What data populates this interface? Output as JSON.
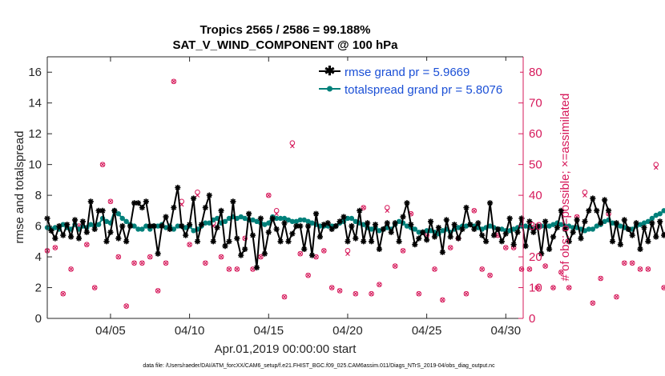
{
  "chart_data": {
    "type": "line",
    "title_line1": "Tropics 2565 / 2586 = 99.188%",
    "title_line2": "SAT_V_WIND_COMPONENT @ 100 hPa",
    "xlabel": "Apr.01,2019 00:00:00 start",
    "ylabel_left": "rmse and totalspread",
    "ylabel_right": "# of obs: o=possible; ×=assimilated",
    "xlim": [
      1,
      31.1
    ],
    "ylim_left": [
      0,
      17
    ],
    "ylim_right": [
      0,
      85
    ],
    "x_ticks": [
      5,
      10,
      15,
      20,
      25,
      30
    ],
    "x_tick_labels": [
      "04/05",
      "04/10",
      "04/15",
      "04/20",
      "04/25",
      "04/30"
    ],
    "y_ticks_left": [
      0,
      2,
      4,
      6,
      8,
      10,
      12,
      14,
      16
    ],
    "y_tick_labels_left": [
      "0",
      "2",
      "4",
      "6",
      "8",
      "10",
      "12",
      "14",
      "16"
    ],
    "y_ticks_right": [
      0,
      10,
      20,
      30,
      40,
      50,
      60,
      70,
      80
    ],
    "y_tick_labels_right": [
      "0",
      "10",
      "20",
      "30",
      "40",
      "50",
      "60",
      "70",
      "80"
    ],
    "series": [
      {
        "name": "rmse grand pr = 5.9669",
        "color": "#000000",
        "marker": "star",
        "x_start": 1.0,
        "x_step": 0.25,
        "values": [
          6.5,
          5.7,
          5.2,
          6.0,
          5.4,
          6.1,
          5.3,
          6.4,
          5.2,
          6.3,
          5.6,
          7.6,
          5.8,
          7.0,
          7.0,
          5.0,
          5.6,
          7.0,
          5.2,
          6.0,
          5.0,
          6.0,
          7.5,
          7.5,
          7.2,
          7.6,
          6.0,
          6.0,
          4.2,
          6.0,
          6.6,
          5.8,
          7.2,
          8.5,
          6.0,
          5.4,
          6.1,
          7.8,
          5.0,
          6.1,
          7.2,
          8.0,
          5.0,
          5.9,
          7.0,
          4.7,
          5.0,
          7.6,
          5.2,
          4.1,
          4.5,
          6.8,
          5.4,
          3.3,
          6.5,
          4.2,
          5.6,
          6.5,
          5.8,
          5.0,
          6.2,
          5.0,
          5.5,
          6.0,
          6.0,
          4.5,
          6.0,
          4.1,
          6.8,
          5.3,
          6.1,
          6.2,
          5.8,
          6.0,
          6.3,
          6.6,
          5.0,
          6.0,
          5.2,
          7.0,
          5.0,
          6.2,
          5.0,
          6.1,
          4.5,
          5.8,
          6.2,
          5.6,
          6.2,
          5.0,
          6.6,
          7.5,
          6.1,
          4.8,
          5.2,
          5.6,
          5.1,
          6.3,
          5.3,
          5.9,
          4.3,
          6.4,
          5.3,
          6.1,
          5.2,
          5.8,
          7.2,
          6.1,
          5.8,
          6.2,
          5.4,
          5.0,
          7.5,
          5.4,
          5.8,
          5.0,
          5.5,
          6.5,
          4.8,
          5.6,
          6.5,
          4.7,
          6.3,
          5.6,
          6.0,
          4.2,
          6.3,
          4.5,
          5.3,
          5.9,
          7.0,
          5.8,
          5.0,
          5.6,
          6.4,
          5.2,
          6.3,
          7.0,
          7.8,
          7.0,
          6.2,
          7.7,
          7.0,
          5.0,
          6.2,
          4.8,
          6.4,
          5.8,
          5.4,
          6.2,
          4.5,
          5.9,
          5.0,
          6.2,
          5.3,
          6.3,
          5.4,
          5.9,
          4.3,
          6.3,
          5.4,
          6.0,
          6.2,
          4.8,
          6.3,
          4.8,
          6.4,
          5.8,
          5.5,
          6.3,
          6.5,
          6.4,
          5.2,
          5.0,
          4.6,
          6.1,
          4.2,
          2.5,
          6.3,
          6.5,
          5.0,
          6.7,
          5.2,
          6.1,
          5.5,
          6.3,
          6.0,
          5.7,
          5.0,
          5.7,
          5.6,
          6.8,
          5.4,
          6.0,
          5.0,
          5.6,
          5.0,
          6.4,
          5.5,
          5.7,
          5.3,
          6.0,
          7.3,
          5.0
        ]
      },
      {
        "name": "totalspread grand pr = 5.8076",
        "color": "#00807a",
        "marker": "dot",
        "x_start": 1.0,
        "x_step": 0.25,
        "values": [
          5.9,
          5.8,
          5.9,
          5.8,
          6.1,
          5.9,
          5.8,
          6.1,
          5.8,
          6.0,
          5.9,
          6.1,
          6.0,
          6.1,
          6.5,
          6.3,
          6.2,
          7.0,
          6.8,
          6.5,
          6.3,
          6.1,
          6.0,
          5.8,
          5.8,
          6.0,
          5.8,
          6.0,
          6.0,
          6.1,
          5.9,
          6.0,
          5.8,
          6.0,
          6.0,
          5.9,
          6.0,
          5.7,
          5.8,
          6.0,
          6.2,
          6.2,
          6.4,
          6.5,
          6.2,
          6.3,
          6.5,
          6.6,
          6.5,
          6.6,
          6.5,
          6.4,
          6.4,
          6.3,
          6.2,
          6.1,
          6.2,
          6.6,
          6.5,
          6.5,
          6.5,
          6.4,
          6.3,
          6.3,
          6.4,
          6.4,
          6.3,
          6.2,
          6.1,
          6.0,
          6.0,
          6.0,
          6.0,
          6.0,
          6.2,
          6.3,
          6.5,
          6.5,
          6.3,
          6.2,
          6.1,
          5.9,
          5.8,
          5.9,
          5.7,
          5.8,
          5.9,
          5.8,
          6.1,
          6.3,
          6.2,
          6.0,
          5.9,
          5.8,
          5.6,
          5.6,
          5.7,
          5.7,
          5.6,
          5.5,
          5.7,
          5.8,
          5.6,
          5.8,
          5.9,
          6.0,
          6.0,
          6.1,
          6.0,
          5.9,
          5.8,
          5.9,
          6.0,
          5.9,
          5.8,
          5.8,
          5.7,
          5.7,
          5.8,
          5.9,
          6.0,
          6.0,
          5.9,
          5.8,
          5.9,
          6.0,
          6.0,
          6.0,
          6.1,
          6.2,
          6.1,
          6.0,
          6.0,
          5.9,
          5.9,
          5.8,
          5.7,
          5.8,
          5.8,
          6.0,
          6.1,
          6.3,
          6.4,
          6.2,
          6.1,
          6.0,
          5.9,
          5.8,
          5.8,
          6.0,
          6.1,
          6.2,
          6.3,
          6.5,
          6.7,
          6.8,
          7.0,
          6.8,
          6.6,
          6.4,
          6.2,
          6.0,
          5.9,
          5.8,
          5.9,
          6.0,
          5.9,
          5.9,
          6.0,
          5.8,
          5.9,
          5.7,
          5.8,
          5.9,
          5.8,
          5.9,
          5.9,
          5.8,
          5.6,
          5.5,
          5.4,
          5.6,
          5.8,
          6.0,
          6.1,
          6.4,
          6.5,
          6.8,
          6.2,
          5.9,
          5.6,
          5.4,
          5.6,
          5.8,
          5.9,
          5.9,
          5.7,
          5.6,
          5.5,
          5.6,
          5.7,
          5.8,
          5.9,
          5.9,
          5.8,
          6.0
        ]
      }
    ],
    "obs_points": {
      "color": "#d6185a",
      "x_start": 1.0,
      "x_step": 0.5,
      "possible": [
        22,
        23,
        8,
        16,
        30,
        24,
        10,
        50,
        38,
        20,
        4,
        18,
        18,
        20,
        9,
        18,
        77,
        38,
        24,
        41,
        18,
        31,
        20,
        16,
        16,
        26,
        16,
        20,
        40,
        35,
        7,
        57,
        21,
        14,
        20,
        22,
        10,
        9,
        22,
        8,
        36,
        8,
        11,
        36,
        17,
        22,
        34,
        8,
        27,
        16,
        6,
        23,
        26,
        8,
        35,
        16,
        14,
        27,
        23,
        23,
        16,
        16,
        10,
        17,
        10,
        15,
        10,
        33,
        41,
        5,
        13,
        34,
        7,
        18,
        18,
        16,
        16,
        50,
        10,
        15,
        54,
        12,
        8,
        7,
        23,
        20,
        15,
        22,
        8,
        50,
        43,
        39,
        30,
        20,
        18,
        30,
        15,
        6,
        9,
        25,
        7,
        21,
        27,
        6,
        16,
        26,
        5,
        4,
        10,
        20,
        20,
        16,
        42,
        22,
        22,
        10,
        18,
        28,
        43,
        30,
        5,
        18,
        28,
        10,
        20,
        16,
        20,
        23,
        10,
        10,
        30,
        25,
        20,
        10,
        3,
        5,
        4,
        16,
        24,
        26,
        24,
        23,
        35,
        30,
        5,
        12,
        23,
        8,
        27,
        16,
        32,
        66,
        20,
        38,
        30,
        5,
        17,
        5,
        25,
        30
      ],
      "assimilated": [
        22,
        23,
        8,
        16,
        30,
        24,
        10,
        50,
        38,
        20,
        4,
        18,
        18,
        20,
        9,
        18,
        77,
        37,
        24,
        40,
        18,
        30,
        20,
        16,
        16,
        26,
        16,
        20,
        40,
        34,
        7,
        56,
        21,
        14,
        20,
        22,
        10,
        9,
        21,
        8,
        36,
        8,
        11,
        35,
        17,
        22,
        34,
        8,
        27,
        16,
        6,
        23,
        26,
        8,
        35,
        16,
        14,
        27,
        23,
        23,
        16,
        16,
        10,
        17,
        10,
        15,
        10,
        33,
        40,
        5,
        13,
        34,
        7,
        18,
        18,
        16,
        16,
        49,
        10,
        15,
        54,
        12,
        8,
        7,
        23,
        20,
        15,
        22,
        8,
        49,
        43,
        38,
        30,
        20,
        18,
        30,
        15,
        6,
        9,
        25,
        7,
        21,
        27,
        6,
        16,
        26,
        5,
        4,
        10,
        20,
        20,
        16,
        42,
        22,
        22,
        10,
        18,
        28,
        43,
        30,
        5,
        18,
        28,
        10,
        20,
        16,
        20,
        23,
        10,
        10,
        30,
        25,
        20,
        10,
        3,
        5,
        4,
        16,
        24,
        26,
        24,
        23,
        35,
        30,
        5,
        12,
        23,
        8,
        27,
        16,
        32,
        66,
        20,
        38,
        30,
        5,
        17,
        5,
        25,
        30
      ]
    },
    "legend": {
      "placement": "top-right",
      "entries": [
        "rmse grand pr = 5.9669",
        "totalspread grand pr = 5.8076"
      ]
    },
    "footer_text": "data file: /Users/raeder/DAI/ATM_forcXX/CAM6_setup/f.e21.FHIST_BGC.f09_025.CAM6assim.011/Diags_NTrS_2019-04/obs_diag_output.nc"
  }
}
